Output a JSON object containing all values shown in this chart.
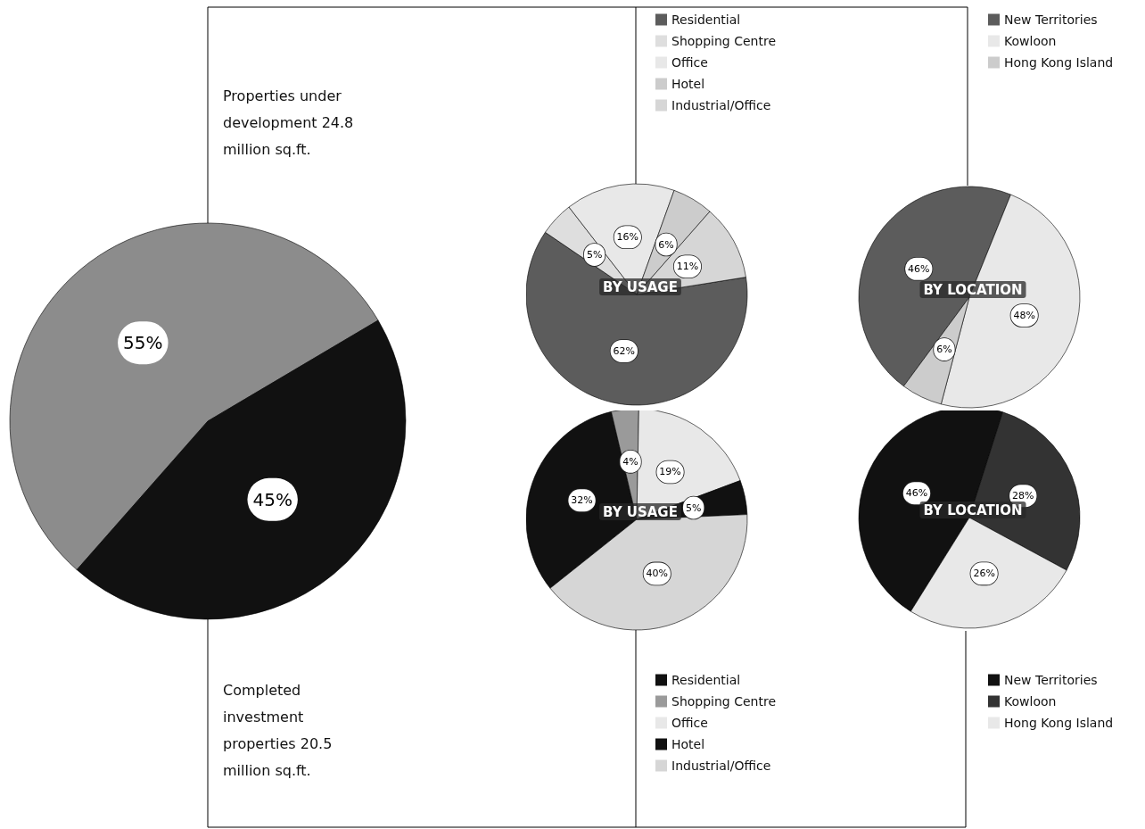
{
  "chart_data": [
    {
      "type": "pie",
      "categories": [
        "Properties under development 24.8 million sq.ft.",
        "Completed investment properties 20.5 million sq.ft."
      ],
      "values": [
        55,
        45
      ],
      "colors": [
        "#8c8c8c",
        "#111111"
      ],
      "value_labels": [
        "55%",
        "45%"
      ],
      "legend": false
    },
    {
      "type": "pie",
      "title": "BY USAGE",
      "categories": [
        "Residential",
        "Shopping Centre",
        "Office",
        "Hotel",
        "Industrial/Office"
      ],
      "values": [
        62,
        5,
        16,
        6,
        11
      ],
      "colors": [
        "#5c5c5c",
        "#dedede",
        "#e8e8e8",
        "#cccccc",
        "#d6d6d6"
      ],
      "value_labels": [
        "62%",
        "5%",
        "16%",
        "6%",
        "11%"
      ],
      "legend": "top"
    },
    {
      "type": "pie",
      "title": "BY LOCATION",
      "categories": [
        "New Territories",
        "Kowloon",
        "Hong Kong Island"
      ],
      "values": [
        46,
        48,
        6
      ],
      "colors": [
        "#5c5c5c",
        "#e8e8e8",
        "#cccccc"
      ],
      "value_labels": [
        "46%",
        "48%",
        "6%"
      ],
      "legend": "top"
    },
    {
      "type": "pie",
      "title": "BY USAGE",
      "categories": [
        "Residential",
        "Shopping Centre",
        "Office",
        "Hotel",
        "Industrial/Office"
      ],
      "values": [
        32,
        4,
        19,
        5,
        40
      ],
      "colors": [
        "#111111",
        "#9a9a9a",
        "#e8e8e8",
        "#111111",
        "#d6d6d6"
      ],
      "value_labels": [
        "32%",
        "4%",
        "19%",
        "5%",
        "40%"
      ],
      "legend": "bottom"
    },
    {
      "type": "pie",
      "title": "BY LOCATION",
      "categories": [
        "New Territories",
        "Kowloon",
        "Hong Kong Island"
      ],
      "values": [
        46,
        28,
        26
      ],
      "colors": [
        "#111111",
        "#333333",
        "#e8e8e8"
      ],
      "value_labels": [
        "46%",
        "28%",
        "26%"
      ],
      "legend": "bottom"
    }
  ]
}
